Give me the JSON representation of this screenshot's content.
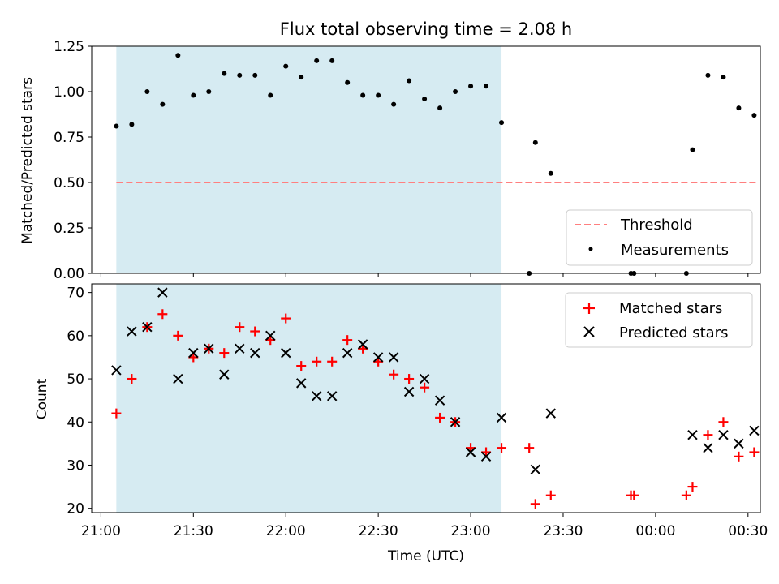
{
  "chart_data": [
    {
      "type": "scatter",
      "title": "Flux total observing time = 2.08 h",
      "xlabel": "",
      "ylabel": "Matched/Predicted stars",
      "ylim": [
        0,
        1.25
      ],
      "yticks": [
        "0.00",
        "0.25",
        "0.50",
        "0.75",
        "1.00",
        "1.25"
      ],
      "xlim_minutes": [
        1257,
        1474
      ],
      "shaded_span_minutes": [
        1265,
        1390
      ],
      "shaded_color": "#add8e6",
      "threshold": {
        "name": "Threshold",
        "value": 0.5,
        "x_range_minutes": [
          1265,
          1473
        ],
        "color": "#ff7f7f"
      },
      "series": [
        {
          "name": "Measurements",
          "color": "#000000",
          "points": [
            [
              1265,
              0.81
            ],
            [
              1270,
              0.82
            ],
            [
              1275,
              1.0
            ],
            [
              1280,
              0.93
            ],
            [
              1285,
              1.2
            ],
            [
              1290,
              0.98
            ],
            [
              1295,
              1.0
            ],
            [
              1300,
              1.1
            ],
            [
              1305,
              1.09
            ],
            [
              1310,
              1.09
            ],
            [
              1315,
              0.98
            ],
            [
              1320,
              1.14
            ],
            [
              1325,
              1.08
            ],
            [
              1330,
              1.17
            ],
            [
              1335,
              1.17
            ],
            [
              1340,
              1.05
            ],
            [
              1345,
              0.98
            ],
            [
              1350,
              0.98
            ],
            [
              1355,
              0.93
            ],
            [
              1360,
              1.06
            ],
            [
              1365,
              0.96
            ],
            [
              1370,
              0.91
            ],
            [
              1375,
              1.0
            ],
            [
              1380,
              1.03
            ],
            [
              1385,
              1.03
            ],
            [
              1390,
              0.83
            ],
            [
              1399,
              0.0
            ],
            [
              1401,
              0.72
            ],
            [
              1406,
              0.55
            ],
            [
              1432,
              0.0
            ],
            [
              1433,
              0.0
            ],
            [
              1450,
              0.0
            ],
            [
              1452,
              0.68
            ],
            [
              1457,
              1.09
            ],
            [
              1462,
              1.08
            ],
            [
              1467,
              0.91
            ],
            [
              1472,
              0.87
            ]
          ]
        }
      ],
      "legend": {
        "position": "lower-right",
        "entries": [
          "Threshold",
          "Measurements"
        ]
      }
    },
    {
      "type": "scatter",
      "title": "",
      "xlabel": "Time (UTC)",
      "ylabel": "Count",
      "ylim": [
        19,
        72
      ],
      "yticks": [
        "20",
        "30",
        "40",
        "50",
        "60",
        "70"
      ],
      "xticks": [
        "21:00",
        "21:30",
        "22:00",
        "22:30",
        "23:00",
        "23:30",
        "00:00",
        "00:30"
      ],
      "xticks_minutes": [
        1260,
        1290,
        1320,
        1350,
        1380,
        1410,
        1440,
        1470
      ],
      "xlim_minutes": [
        1257,
        1474
      ],
      "shaded_span_minutes": [
        1265,
        1390
      ],
      "shaded_color": "#add8e6",
      "series": [
        {
          "name": "Matched stars",
          "marker": "+",
          "color": "#ff0000",
          "points": [
            [
              1265,
              42
            ],
            [
              1270,
              50
            ],
            [
              1275,
              62
            ],
            [
              1280,
              65
            ],
            [
              1285,
              60
            ],
            [
              1290,
              55
            ],
            [
              1295,
              57
            ],
            [
              1300,
              56
            ],
            [
              1305,
              62
            ],
            [
              1310,
              61
            ],
            [
              1315,
              59
            ],
            [
              1320,
              64
            ],
            [
              1325,
              53
            ],
            [
              1330,
              54
            ],
            [
              1335,
              54
            ],
            [
              1340,
              59
            ],
            [
              1345,
              57
            ],
            [
              1350,
              54
            ],
            [
              1355,
              51
            ],
            [
              1360,
              50
            ],
            [
              1365,
              48
            ],
            [
              1370,
              41
            ],
            [
              1375,
              40
            ],
            [
              1380,
              34
            ],
            [
              1385,
              33
            ],
            [
              1390,
              34
            ],
            [
              1399,
              34
            ],
            [
              1401,
              21
            ],
            [
              1406,
              23
            ],
            [
              1432,
              23
            ],
            [
              1433,
              23
            ],
            [
              1450,
              23
            ],
            [
              1452,
              25
            ],
            [
              1457,
              37
            ],
            [
              1462,
              40
            ],
            [
              1467,
              32
            ],
            [
              1472,
              33
            ]
          ]
        },
        {
          "name": "Predicted stars",
          "marker": "x",
          "color": "#000000",
          "points": [
            [
              1265,
              52
            ],
            [
              1270,
              61
            ],
            [
              1275,
              62
            ],
            [
              1280,
              70
            ],
            [
              1285,
              50
            ],
            [
              1290,
              56
            ],
            [
              1295,
              57
            ],
            [
              1300,
              51
            ],
            [
              1305,
              57
            ],
            [
              1310,
              56
            ],
            [
              1315,
              60
            ],
            [
              1320,
              56
            ],
            [
              1325,
              49
            ],
            [
              1330,
              46
            ],
            [
              1335,
              46
            ],
            [
              1340,
              56
            ],
            [
              1345,
              58
            ],
            [
              1350,
              55
            ],
            [
              1355,
              55
            ],
            [
              1360,
              47
            ],
            [
              1365,
              50
            ],
            [
              1370,
              45
            ],
            [
              1375,
              40
            ],
            [
              1380,
              33
            ],
            [
              1385,
              32
            ],
            [
              1390,
              41
            ],
            [
              1401,
              29
            ],
            [
              1406,
              42
            ],
            [
              1452,
              37
            ],
            [
              1457,
              34
            ],
            [
              1462,
              37
            ],
            [
              1467,
              35
            ],
            [
              1472,
              38
            ]
          ]
        }
      ],
      "legend": {
        "position": "upper-right",
        "entries": [
          "Matched stars",
          "Predicted stars"
        ]
      }
    }
  ]
}
